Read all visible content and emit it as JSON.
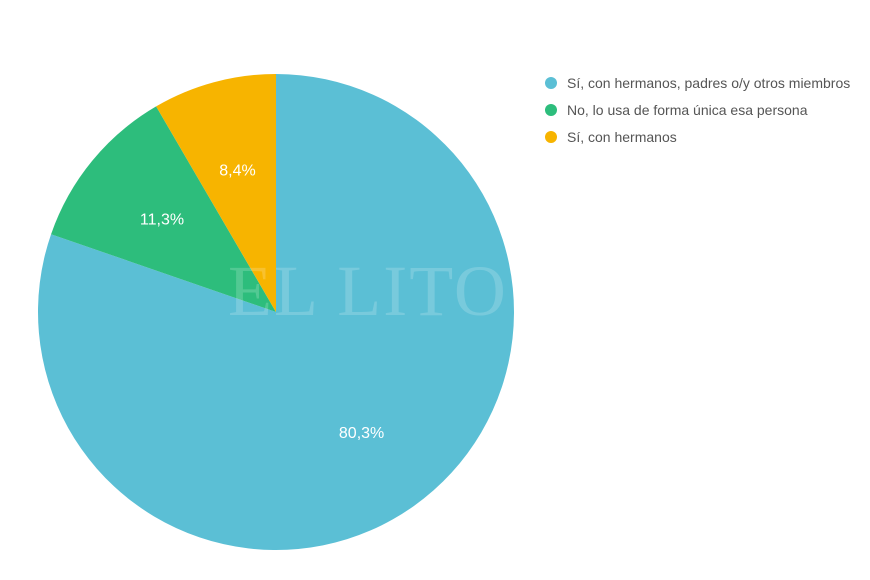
{
  "chart_data": {
    "type": "pie",
    "categories": [
      "Sí, con hermanos, padres o/y otros miembros",
      "No, lo usa de forma única esa persona",
      "Sí, con hermanos"
    ],
    "values": [
      80.3,
      11.3,
      8.4
    ],
    "labels": [
      "80,3%",
      "11,3%",
      "8,4%"
    ],
    "colors": [
      "#5bbfd5",
      "#2dbd7c",
      "#f7b400"
    ],
    "start_angle": "top, clockwise",
    "legend_position": "right"
  },
  "watermark": "EL LITORAL"
}
